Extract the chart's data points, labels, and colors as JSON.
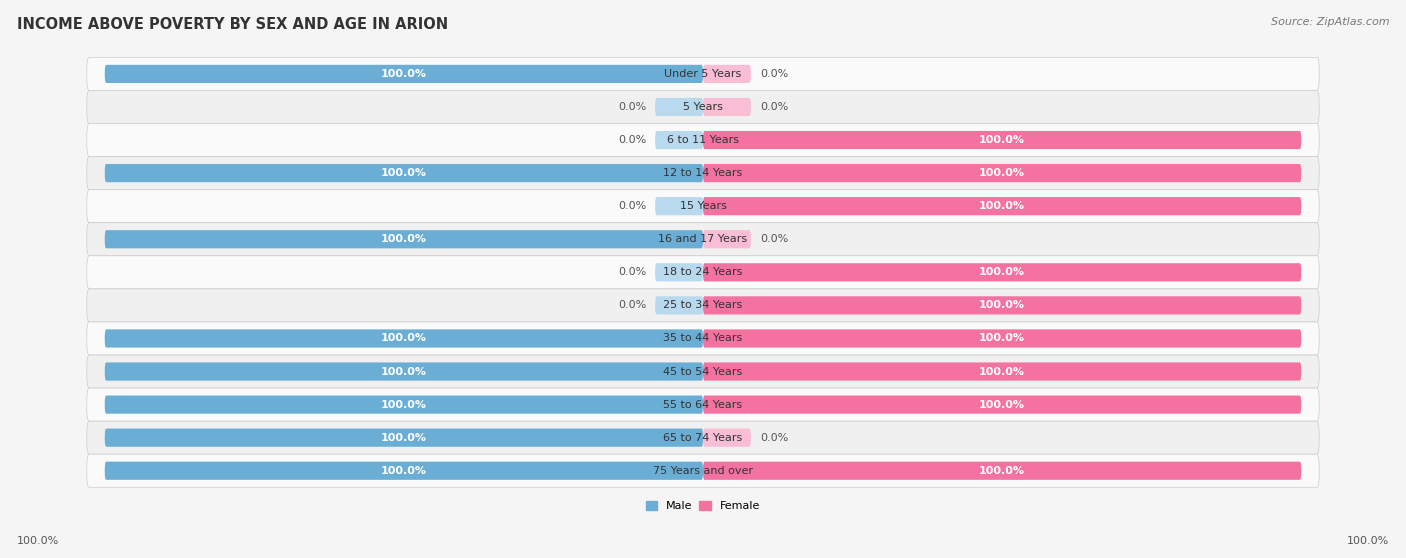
{
  "title": "INCOME ABOVE POVERTY BY SEX AND AGE IN ARION",
  "source": "Source: ZipAtlas.com",
  "categories": [
    "Under 5 Years",
    "5 Years",
    "6 to 11 Years",
    "12 to 14 Years",
    "15 Years",
    "16 and 17 Years",
    "18 to 24 Years",
    "25 to 34 Years",
    "35 to 44 Years",
    "45 to 54 Years",
    "55 to 64 Years",
    "65 to 74 Years",
    "75 Years and over"
  ],
  "male": [
    100.0,
    0.0,
    0.0,
    100.0,
    0.0,
    100.0,
    0.0,
    0.0,
    100.0,
    100.0,
    100.0,
    100.0,
    100.0
  ],
  "female": [
    0.0,
    0.0,
    100.0,
    100.0,
    100.0,
    0.0,
    100.0,
    100.0,
    100.0,
    100.0,
    100.0,
    0.0,
    100.0
  ],
  "male_color": "#6aaed6",
  "male_color_light": "#b8d9ee",
  "female_color": "#f472a0",
  "female_color_light": "#f9bdd4",
  "row_color_odd": "#f0f0f0",
  "row_color_even": "#fafafa",
  "title_fontsize": 10.5,
  "source_fontsize": 8,
  "label_fontsize": 8,
  "value_fontsize": 8,
  "bg_color": "#f5f5f5"
}
